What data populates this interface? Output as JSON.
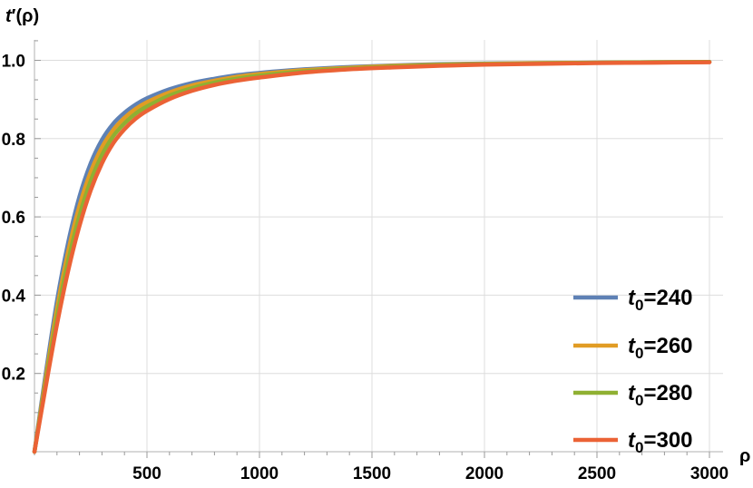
{
  "chart_data": {
    "type": "line",
    "xlabel": "ρ",
    "ylabel_main": "t",
    "ylabel_rest": "′(ρ)",
    "xlim": [
      0,
      3000
    ],
    "ylim": [
      0,
      1.05
    ],
    "x_ticks": [
      500,
      1000,
      1500,
      2000,
      2500,
      3000
    ],
    "x_tick_labels": [
      "500",
      "1000",
      "1500",
      "2000",
      "2500",
      "3000"
    ],
    "y_ticks": [
      0.2,
      0.4,
      0.6,
      0.8,
      1.0
    ],
    "y_tick_labels": [
      "0.2",
      "0.4",
      "0.6",
      "0.8",
      "1.0"
    ],
    "grid": true,
    "legend_position": "bottom-right",
    "x": [
      0,
      50,
      100,
      150,
      200,
      250,
      300,
      350,
      400,
      450,
      500,
      600,
      700,
      800,
      900,
      1000,
      1200,
      1400,
      1600,
      1800,
      2000,
      2250,
      2500,
      2750,
      3000
    ],
    "series": [
      {
        "name_main": "t",
        "name_sub": "0",
        "name_rest": "=240",
        "color": "#5e81b5",
        "values": [
          0,
          0.2,
          0.385,
          0.535,
          0.652,
          0.737,
          0.797,
          0.838,
          0.866,
          0.887,
          0.903,
          0.926,
          0.942,
          0.953,
          0.962,
          0.968,
          0.977,
          0.983,
          0.987,
          0.99,
          0.992,
          0.993,
          0.994,
          0.995,
          0.996
        ]
      },
      {
        "name_main": "t",
        "name_sub": "0",
        "name_rest": "=260",
        "color": "#e19c24",
        "values": [
          0,
          0.188,
          0.365,
          0.512,
          0.628,
          0.715,
          0.778,
          0.822,
          0.853,
          0.876,
          0.893,
          0.918,
          0.936,
          0.948,
          0.958,
          0.965,
          0.975,
          0.981,
          0.986,
          0.989,
          0.991,
          0.993,
          0.994,
          0.995,
          0.996
        ]
      },
      {
        "name_main": "t",
        "name_sub": "0",
        "name_rest": "=280",
        "color": "#8fb032",
        "values": [
          0,
          0.177,
          0.345,
          0.488,
          0.603,
          0.692,
          0.758,
          0.806,
          0.839,
          0.864,
          0.882,
          0.91,
          0.929,
          0.943,
          0.953,
          0.961,
          0.972,
          0.979,
          0.984,
          0.988,
          0.99,
          0.992,
          0.994,
          0.995,
          0.996
        ]
      },
      {
        "name_main": "t",
        "name_sub": "0",
        "name_rest": "=300",
        "color": "#eb6235",
        "values": [
          0,
          0.166,
          0.325,
          0.463,
          0.577,
          0.668,
          0.737,
          0.788,
          0.824,
          0.851,
          0.871,
          0.901,
          0.922,
          0.937,
          0.948,
          0.956,
          0.969,
          0.977,
          0.982,
          0.986,
          0.989,
          0.991,
          0.993,
          0.994,
          0.995
        ]
      }
    ]
  }
}
